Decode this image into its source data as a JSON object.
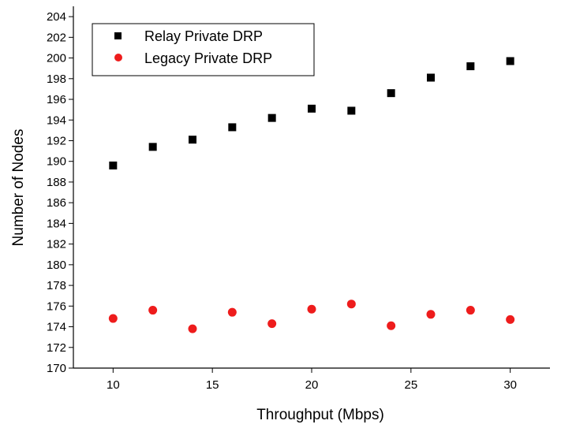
{
  "chart_data": {
    "type": "scatter",
    "title": "",
    "xlabel": "Throughput (Mbps)",
    "ylabel": "Number of Nodes",
    "xlim": [
      8,
      32
    ],
    "ylim": [
      170,
      205
    ],
    "x_ticks": [
      10,
      15,
      20,
      25,
      30
    ],
    "y_ticks": [
      170,
      172,
      174,
      176,
      178,
      180,
      182,
      184,
      186,
      188,
      190,
      192,
      194,
      196,
      198,
      200,
      202,
      204
    ],
    "grid": false,
    "legend_position": "top-left",
    "series": [
      {
        "name": "Relay Private DRP",
        "marker": "square",
        "color": "#000000",
        "points": [
          {
            "x": 10,
            "y": 189.6
          },
          {
            "x": 12,
            "y": 191.4
          },
          {
            "x": 14,
            "y": 192.1
          },
          {
            "x": 16,
            "y": 193.3
          },
          {
            "x": 18,
            "y": 194.2
          },
          {
            "x": 20,
            "y": 195.1
          },
          {
            "x": 22,
            "y": 194.9
          },
          {
            "x": 24,
            "y": 196.6
          },
          {
            "x": 26,
            "y": 198.1
          },
          {
            "x": 28,
            "y": 199.2
          },
          {
            "x": 30,
            "y": 199.7
          }
        ]
      },
      {
        "name": "Legacy Private DRP",
        "marker": "circle",
        "color": "#ee1c1c",
        "points": [
          {
            "x": 10,
            "y": 174.8
          },
          {
            "x": 12,
            "y": 175.6
          },
          {
            "x": 14,
            "y": 173.8
          },
          {
            "x": 16,
            "y": 175.4
          },
          {
            "x": 18,
            "y": 174.3
          },
          {
            "x": 20,
            "y": 175.7
          },
          {
            "x": 22,
            "y": 176.2
          },
          {
            "x": 24,
            "y": 174.1
          },
          {
            "x": 26,
            "y": 175.2
          },
          {
            "x": 28,
            "y": 175.6
          },
          {
            "x": 30,
            "y": 174.7
          }
        ]
      }
    ]
  }
}
